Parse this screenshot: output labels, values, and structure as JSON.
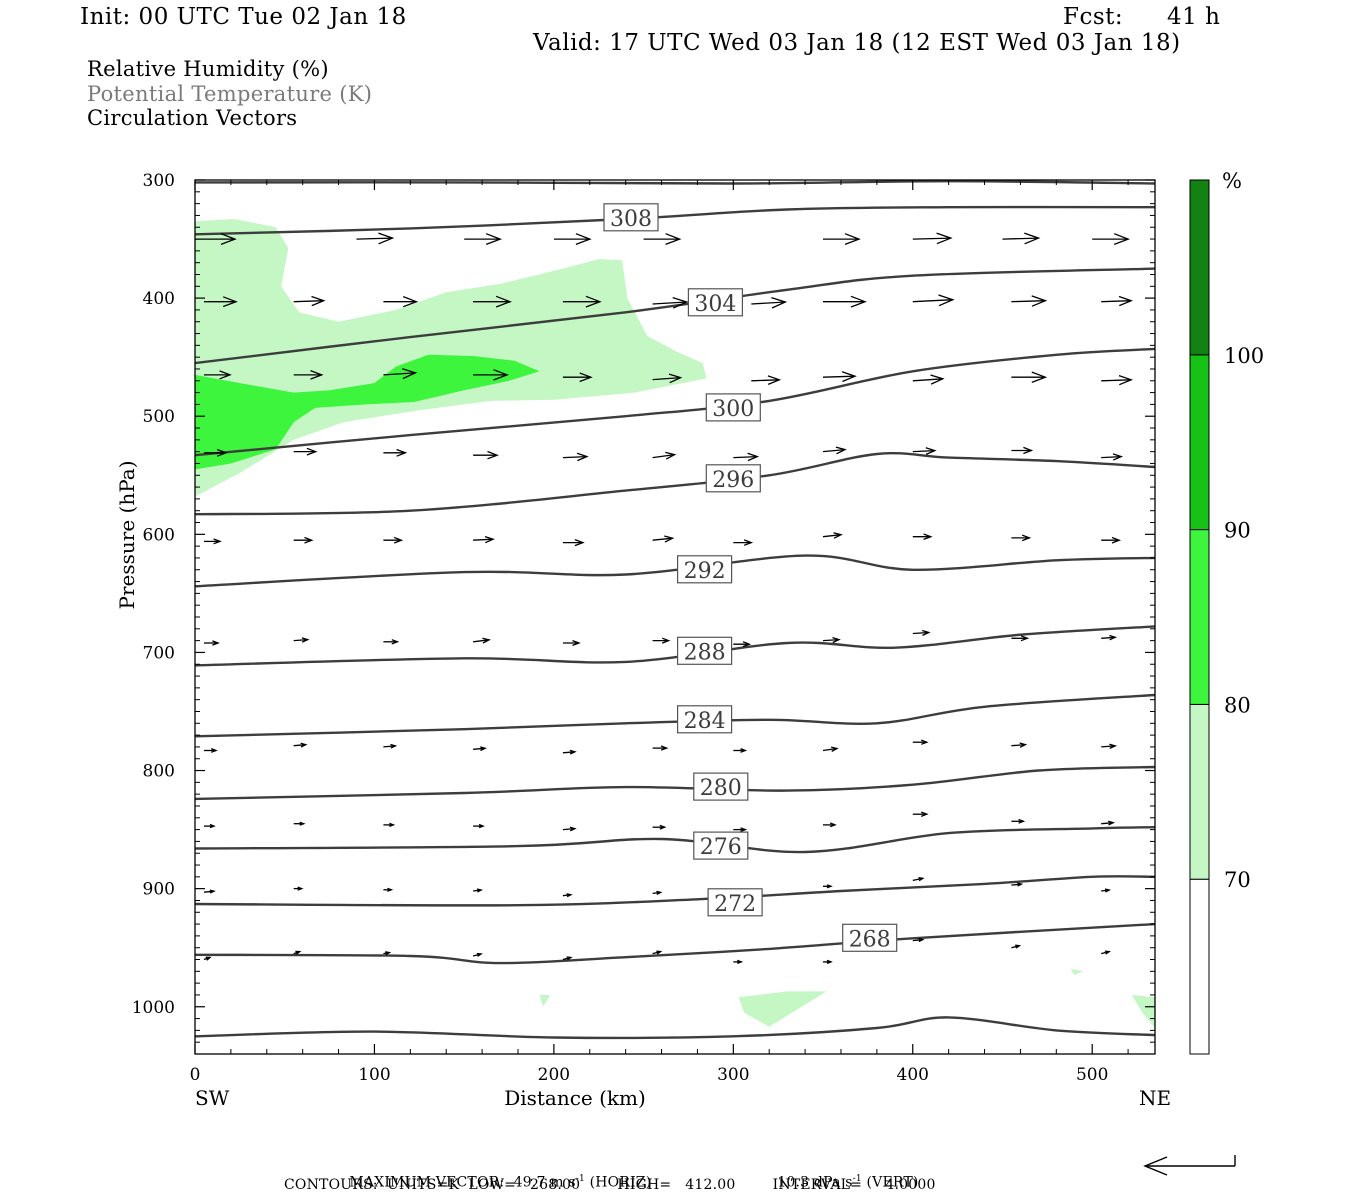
{
  "header": {
    "init": "Init: 00 UTC Tue 02 Jan 18",
    "fcst_label": "Fcst:",
    "fcst_value": "41 h",
    "valid": "Valid: 17 UTC Wed 03 Jan 18 (12 EST Wed 03 Jan 18)"
  },
  "legend_lines": {
    "rh": "Relative Humidity (%)",
    "theta": "Potential Temperature (K)",
    "vectors": "Circulation Vectors"
  },
  "footer": {
    "max_vector_label": "MAXIMUM VECTOR:",
    "horiz_value": "49.7 m s",
    "horiz_exp": "-1",
    "horiz_tag": "(HORIZ)",
    "vert_value": "10.3 dPa s",
    "vert_exp": "-1",
    "vert_tag": "(VERT)",
    "contours": "CONTOURS:  UNITS=K  LOW=   268.00        HIGH=   412.00        INTERVAL=     4.0000"
  },
  "chart_data": {
    "type": "cross-section",
    "xlabel": "Distance (km)",
    "ylabel": "Pressure (hPa)",
    "x_start_label": "SW",
    "x_end_label": "NE",
    "xlim": [
      0,
      535
    ],
    "ylim": [
      1040,
      300
    ],
    "x_ticks": [
      "0",
      "100",
      "200",
      "300",
      "400",
      "500"
    ],
    "x_tick_values": [
      0,
      100,
      200,
      300,
      400,
      500
    ],
    "y_ticks": [
      "300",
      "400",
      "500",
      "600",
      "700",
      "800",
      "900",
      "1000"
    ],
    "y_tick_values": [
      300,
      400,
      500,
      600,
      700,
      800,
      900,
      1000
    ],
    "colorbar": {
      "unit": "%",
      "labels": [
        "70",
        "80",
        "90",
        "100"
      ],
      "levels": [
        70,
        80,
        90,
        100
      ],
      "colors": [
        "#ffffff",
        "#c4f7c4",
        "#3cf53c",
        "#16c216",
        "#128212"
      ]
    },
    "rh_colors": {
      "light": "#c4f7c4",
      "medium": "#3cf53c"
    },
    "theta_color": "#3d3d3d",
    "rh_regions": [
      {
        "level": "light",
        "points": [
          [
            0,
            335
          ],
          [
            22,
            333
          ],
          [
            45,
            340
          ],
          [
            52,
            358
          ],
          [
            48,
            390
          ],
          [
            58,
            412
          ],
          [
            80,
            420
          ],
          [
            112,
            410
          ],
          [
            140,
            395
          ],
          [
            170,
            388
          ],
          [
            205,
            375
          ],
          [
            225,
            367
          ],
          [
            238,
            368
          ],
          [
            241,
            400
          ],
          [
            252,
            432
          ],
          [
            268,
            445
          ],
          [
            283,
            455
          ],
          [
            285,
            468
          ],
          [
            245,
            480
          ],
          [
            200,
            486
          ],
          [
            165,
            487
          ],
          [
            125,
            495
          ],
          [
            83,
            505
          ],
          [
            55,
            520
          ],
          [
            25,
            548
          ],
          [
            0,
            568
          ]
        ]
      },
      {
        "level": "medium",
        "points": [
          [
            0,
            465
          ],
          [
            25,
            472
          ],
          [
            55,
            480
          ],
          [
            75,
            478
          ],
          [
            100,
            472
          ],
          [
            112,
            458
          ],
          [
            130,
            448
          ],
          [
            155,
            449
          ],
          [
            178,
            453
          ],
          [
            192,
            462
          ],
          [
            175,
            470
          ],
          [
            150,
            478
          ],
          [
            122,
            488
          ],
          [
            95,
            490
          ],
          [
            67,
            493
          ],
          [
            55,
            505
          ],
          [
            45,
            528
          ],
          [
            20,
            540
          ],
          [
            0,
            545
          ]
        ]
      },
      {
        "level": "light",
        "points": [
          [
            303,
            992
          ],
          [
            330,
            987
          ],
          [
            352,
            987
          ],
          [
            338,
            1000
          ],
          [
            320,
            1017
          ],
          [
            306,
            1005
          ]
        ]
      },
      {
        "level": "light",
        "points": [
          [
            535,
            992
          ],
          [
            522,
            990
          ],
          [
            528,
            1005
          ],
          [
            535,
            1018
          ]
        ]
      },
      {
        "level": "light",
        "points": [
          [
            192,
            990
          ],
          [
            198,
            990
          ],
          [
            194,
            1000
          ]
        ]
      },
      {
        "level": "light",
        "points": [
          [
            488,
            968
          ],
          [
            495,
            970
          ],
          [
            490,
            973
          ]
        ]
      }
    ],
    "theta_contours": [
      {
        "label": "308",
        "label_x": 243,
        "label_p": 332,
        "points": [
          [
            0,
            346
          ],
          [
            120,
            341
          ],
          [
            240,
            333
          ],
          [
            330,
            325
          ],
          [
            420,
            323
          ],
          [
            535,
            323
          ]
        ]
      },
      {
        "label": "304",
        "label_x": 290,
        "label_p": 404,
        "points": [
          [
            0,
            455
          ],
          [
            120,
            433
          ],
          [
            240,
            412
          ],
          [
            330,
            393
          ],
          [
            400,
            381
          ],
          [
            535,
            375
          ]
        ]
      },
      {
        "label": "300",
        "label_x": 300,
        "label_p": 493,
        "points": [
          [
            0,
            533
          ],
          [
            120,
            516
          ],
          [
            240,
            500
          ],
          [
            320,
            487
          ],
          [
            400,
            462
          ],
          [
            480,
            448
          ],
          [
            535,
            443
          ]
        ]
      },
      {
        "label": "296",
        "label_x": 300,
        "label_p": 553,
        "points": [
          [
            0,
            583
          ],
          [
            120,
            580
          ],
          [
            240,
            563
          ],
          [
            320,
            550
          ],
          [
            380,
            532
          ],
          [
            420,
            535
          ],
          [
            480,
            538
          ],
          [
            535,
            543
          ]
        ]
      },
      {
        "label": "292",
        "label_x": 284,
        "label_p": 630,
        "points": [
          [
            0,
            644
          ],
          [
            150,
            632
          ],
          [
            240,
            634
          ],
          [
            340,
            618
          ],
          [
            400,
            630
          ],
          [
            480,
            622
          ],
          [
            535,
            620
          ]
        ]
      },
      {
        "label": "288",
        "label_x": 284,
        "label_p": 699,
        "points": [
          [
            0,
            711
          ],
          [
            150,
            705
          ],
          [
            240,
            708
          ],
          [
            330,
            692
          ],
          [
            390,
            696
          ],
          [
            460,
            685
          ],
          [
            535,
            678
          ]
        ]
      },
      {
        "label": "284",
        "label_x": 284,
        "label_p": 757,
        "points": [
          [
            0,
            771
          ],
          [
            150,
            765
          ],
          [
            240,
            760
          ],
          [
            320,
            757
          ],
          [
            380,
            760
          ],
          [
            440,
            746
          ],
          [
            535,
            736
          ]
        ]
      },
      {
        "label": "280",
        "label_x": 293,
        "label_p": 814,
        "points": [
          [
            0,
            824
          ],
          [
            150,
            819
          ],
          [
            240,
            814
          ],
          [
            330,
            817
          ],
          [
            400,
            812
          ],
          [
            470,
            800
          ],
          [
            535,
            797
          ]
        ]
      },
      {
        "label": "276",
        "label_x": 293,
        "label_p": 864,
        "points": [
          [
            0,
            866
          ],
          [
            180,
            864
          ],
          [
            260,
            858
          ],
          [
            340,
            869
          ],
          [
            420,
            853
          ],
          [
            500,
            849
          ],
          [
            535,
            848
          ]
        ]
      },
      {
        "label": "272",
        "label_x": 301,
        "label_p": 912,
        "points": [
          [
            0,
            913
          ],
          [
            180,
            914
          ],
          [
            280,
            909
          ],
          [
            360,
            902
          ],
          [
            440,
            896
          ],
          [
            500,
            890
          ],
          [
            535,
            890
          ]
        ]
      },
      {
        "label": "268",
        "label_x": 376,
        "label_p": 942,
        "points": [
          [
            0,
            956
          ],
          [
            120,
            957
          ],
          [
            170,
            963
          ],
          [
            240,
            958
          ],
          [
            320,
            951
          ],
          [
            400,
            942
          ],
          [
            535,
            930
          ]
        ]
      },
      {
        "label": "",
        "label_x": 0,
        "label_p": 0,
        "points": [
          [
            0,
            1025
          ],
          [
            100,
            1021
          ],
          [
            200,
            1026
          ],
          [
            300,
            1025
          ],
          [
            380,
            1018
          ],
          [
            420,
            1009
          ],
          [
            480,
            1020
          ],
          [
            535,
            1024
          ]
        ]
      },
      {
        "label": "",
        "label_x": 0,
        "label_p": 0,
        "points": [
          [
            0,
            302
          ],
          [
            150,
            302
          ],
          [
            300,
            303
          ],
          [
            420,
            301
          ],
          [
            535,
            303
          ]
        ]
      }
    ],
    "vectors": [
      [
        0,
        350,
        40,
        0
      ],
      [
        90,
        350,
        36,
        -1
      ],
      [
        150,
        350,
        36,
        0
      ],
      [
        200,
        350,
        36,
        0
      ],
      [
        250,
        350,
        36,
        0
      ],
      [
        300,
        352,
        0,
        0
      ],
      [
        350,
        350,
        36,
        0
      ],
      [
        400,
        350,
        38,
        -1
      ],
      [
        450,
        350,
        36,
        -1
      ],
      [
        500,
        350,
        36,
        0
      ],
      [
        5,
        403,
        32,
        0
      ],
      [
        55,
        403,
        30,
        -1
      ],
      [
        105,
        403,
        33,
        0
      ],
      [
        155,
        403,
        37,
        0
      ],
      [
        205,
        403,
        37,
        0
      ],
      [
        255,
        405,
        34,
        -2
      ],
      [
        310,
        405,
        34,
        -2
      ],
      [
        350,
        403,
        42,
        0
      ],
      [
        400,
        403,
        40,
        -2
      ],
      [
        455,
        403,
        34,
        -1
      ],
      [
        505,
        403,
        30,
        -1
      ],
      [
        5,
        465,
        26,
        0
      ],
      [
        55,
        465,
        28,
        0
      ],
      [
        105,
        465,
        32,
        -2
      ],
      [
        155,
        465,
        34,
        0
      ],
      [
        205,
        467,
        28,
        0
      ],
      [
        255,
        469,
        28,
        -2
      ],
      [
        310,
        470,
        28,
        -1
      ],
      [
        350,
        467,
        32,
        -1
      ],
      [
        400,
        470,
        30,
        -2
      ],
      [
        455,
        467,
        34,
        0
      ],
      [
        505,
        470,
        30,
        -1
      ],
      [
        5,
        531,
        22,
        0
      ],
      [
        55,
        530,
        22,
        0
      ],
      [
        105,
        531,
        22,
        0
      ],
      [
        155,
        533,
        24,
        0
      ],
      [
        205,
        535,
        24,
        -1
      ],
      [
        255,
        535,
        22,
        -3
      ],
      [
        300,
        535,
        24,
        -1
      ],
      [
        350,
        530,
        22,
        -2
      ],
      [
        400,
        530,
        22,
        -1
      ],
      [
        455,
        529,
        20,
        0
      ],
      [
        505,
        535,
        20,
        -1
      ],
      [
        5,
        606,
        16,
        0
      ],
      [
        55,
        605,
        18,
        0
      ],
      [
        105,
        605,
        18,
        0
      ],
      [
        155,
        605,
        20,
        -1
      ],
      [
        205,
        607,
        20,
        0
      ],
      [
        255,
        605,
        20,
        -2
      ],
      [
        300,
        607,
        18,
        0
      ],
      [
        350,
        602,
        18,
        -2
      ],
      [
        400,
        602,
        18,
        0
      ],
      [
        455,
        603,
        18,
        0
      ],
      [
        505,
        605,
        18,
        0
      ],
      [
        5,
        692,
        14,
        0
      ],
      [
        55,
        690,
        14,
        -1
      ],
      [
        105,
        691,
        14,
        0
      ],
      [
        155,
        691,
        16,
        -2
      ],
      [
        205,
        692,
        16,
        0
      ],
      [
        255,
        690,
        16,
        0
      ],
      [
        300,
        693,
        16,
        0
      ],
      [
        350,
        690,
        16,
        -1
      ],
      [
        400,
        684,
        16,
        -1
      ],
      [
        455,
        688,
        16,
        0
      ],
      [
        505,
        688,
        14,
        -1
      ],
      [
        5,
        783,
        12,
        0
      ],
      [
        55,
        779,
        12,
        -1
      ],
      [
        105,
        780,
        12,
        -1
      ],
      [
        155,
        782,
        12,
        -1
      ],
      [
        205,
        785,
        12,
        -1
      ],
      [
        255,
        781,
        14,
        0
      ],
      [
        300,
        783,
        12,
        0
      ],
      [
        350,
        783,
        14,
        -2
      ],
      [
        400,
        776,
        14,
        0
      ],
      [
        455,
        779,
        14,
        -1
      ],
      [
        505,
        780,
        14,
        -1
      ],
      [
        5,
        847,
        10,
        0
      ],
      [
        55,
        845,
        10,
        0
      ],
      [
        105,
        846,
        10,
        0
      ],
      [
        155,
        847,
        10,
        0
      ],
      [
        205,
        850,
        12,
        -1
      ],
      [
        255,
        848,
        12,
        0
      ],
      [
        300,
        850,
        12,
        0
      ],
      [
        350,
        846,
        12,
        0
      ],
      [
        400,
        837,
        14,
        0
      ],
      [
        455,
        843,
        12,
        0
      ],
      [
        505,
        845,
        12,
        -1
      ],
      [
        5,
        903,
        10,
        -1
      ],
      [
        55,
        900,
        8,
        0
      ],
      [
        105,
        901,
        8,
        0
      ],
      [
        155,
        902,
        8,
        -1
      ],
      [
        205,
        906,
        8,
        -1
      ],
      [
        255,
        904,
        8,
        -1
      ],
      [
        300,
        906,
        8,
        0
      ],
      [
        350,
        898,
        8,
        0
      ],
      [
        400,
        893,
        10,
        -2
      ],
      [
        455,
        897,
        10,
        -1
      ],
      [
        505,
        902,
        8,
        -1
      ],
      [
        5,
        960,
        6,
        -2
      ],
      [
        55,
        955,
        6,
        -2
      ],
      [
        105,
        955,
        6,
        -1
      ],
      [
        155,
        957,
        8,
        -2
      ],
      [
        205,
        960,
        8,
        -2
      ],
      [
        255,
        955,
        8,
        -2
      ],
      [
        300,
        962,
        8,
        0
      ],
      [
        350,
        962,
        8,
        0
      ],
      [
        400,
        944,
        10,
        -1
      ],
      [
        455,
        950,
        8,
        -2
      ],
      [
        505,
        955,
        8,
        -2
      ]
    ]
  }
}
